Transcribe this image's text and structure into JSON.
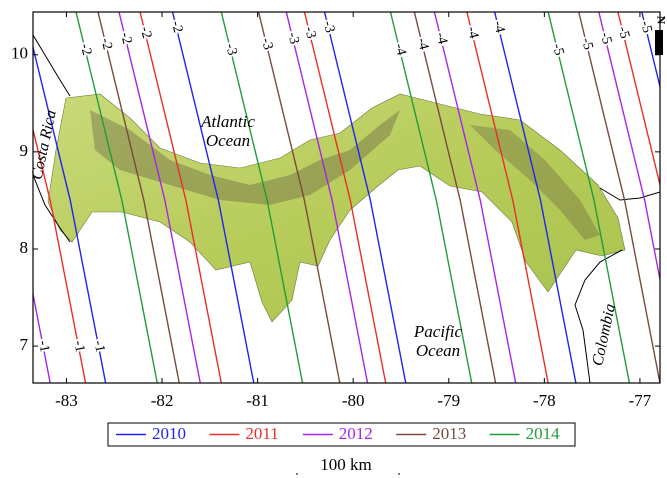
{
  "chart_data": {
    "type": "isolines",
    "xlim": [
      -83.35,
      -76.79
    ],
    "ylim": [
      6.62,
      10.44
    ],
    "xticks": [
      -83,
      -82,
      -81,
      -80,
      -79,
      -78,
      -77
    ],
    "yticks": [
      7,
      8,
      9,
      10
    ],
    "annotations": [
      "Costa Rica",
      "Atlantic Ocean",
      "Pacific Ocean",
      "Colombia"
    ],
    "scale_label": "100 km",
    "north_label": "N",
    "series": [
      {
        "name": "2010",
        "color": "#2323f0",
        "contours": [
          {
            "level": -1,
            "x": [
              -83.44,
              -82.96,
              -82.59
            ],
            "y": [
              10.44,
              8.5,
              6.62
            ]
          },
          {
            "level": -2,
            "x": [
              -81.89,
              -81.41,
              -81.04
            ],
            "y": [
              10.44,
              8.5,
              6.62
            ]
          },
          {
            "level": -3,
            "x": [
              -80.3,
              -79.82,
              -79.45
            ],
            "y": [
              10.44,
              8.5,
              6.62
            ]
          },
          {
            "level": -4,
            "x": [
              -78.52,
              -78.04,
              -77.67
            ],
            "y": [
              10.44,
              8.5,
              6.62
            ]
          },
          {
            "level": -5,
            "x": [
              -76.98,
              -76.5,
              -76.13
            ],
            "y": [
              10.44,
              8.5,
              6.62
            ]
          }
        ]
      },
      {
        "name": "2011",
        "color": "#e8302a",
        "contours": [
          {
            "level": -1,
            "x": [
              -83.65,
              -83.17,
              -82.8
            ],
            "y": [
              10.44,
              8.5,
              6.62
            ]
          },
          {
            "level": -2,
            "x": [
              -82.23,
              -81.75,
              -81.38
            ],
            "y": [
              10.44,
              8.5,
              6.62
            ]
          },
          {
            "level": -3,
            "x": [
              -80.51,
              -80.03,
              -79.66
            ],
            "y": [
              10.44,
              8.5,
              6.62
            ]
          },
          {
            "level": -4,
            "x": [
              -78.81,
              -78.33,
              -77.96
            ],
            "y": [
              10.44,
              8.5,
              6.62
            ]
          },
          {
            "level": -5,
            "x": [
              -77.23,
              -76.75,
              -76.38
            ],
            "y": [
              10.44,
              8.5,
              6.62
            ]
          }
        ]
      },
      {
        "name": "2012",
        "color": "#a626e6",
        "contours": [
          {
            "level": -1,
            "x": [
              -84.02,
              -83.54,
              -83.17
            ],
            "y": [
              10.44,
              8.5,
              6.62
            ]
          },
          {
            "level": -2,
            "x": [
              -82.45,
              -81.97,
              -81.6
            ],
            "y": [
              10.44,
              8.5,
              6.62
            ]
          },
          {
            "level": -3,
            "x": [
              -80.7,
              -80.22,
              -79.85
            ],
            "y": [
              10.44,
              8.5,
              6.62
            ]
          },
          {
            "level": -4,
            "x": [
              -79.15,
              -78.67,
              -78.3
            ],
            "y": [
              10.44,
              8.5,
              6.62
            ]
          },
          {
            "level": -5,
            "x": [
              -77.43,
              -76.95,
              -76.58
            ],
            "y": [
              10.44,
              8.5,
              6.62
            ]
          }
        ]
      },
      {
        "name": "2013",
        "color": "#7b4a3c",
        "contours": [
          {
            "level": -2,
            "x": [
              -82.67,
              -82.19,
              -81.82
            ],
            "y": [
              10.44,
              8.5,
              6.62
            ]
          },
          {
            "level": -3,
            "x": [
              -80.99,
              -80.51,
              -80.14
            ],
            "y": [
              10.44,
              8.5,
              6.62
            ]
          },
          {
            "level": -4,
            "x": [
              -79.36,
              -78.88,
              -78.51
            ],
            "y": [
              10.44,
              8.5,
              6.62
            ]
          },
          {
            "level": -5,
            "x": [
              -77.64,
              -77.16,
              -76.79
            ],
            "y": [
              10.44,
              8.5,
              6.62
            ]
          }
        ]
      },
      {
        "name": "2014",
        "color": "#1f9e3a",
        "contours": [
          {
            "level": -2,
            "x": [
              -82.9,
              -82.42,
              -82.05
            ],
            "y": [
              10.44,
              8.5,
              6.62
            ]
          },
          {
            "level": -3,
            "x": [
              -81.38,
              -80.9,
              -80.53
            ],
            "y": [
              10.44,
              8.5,
              6.62
            ]
          },
          {
            "level": -4,
            "x": [
              -79.61,
              -79.13,
              -78.76
            ],
            "y": [
              10.44,
              8.5,
              6.62
            ]
          },
          {
            "level": -5,
            "x": [
              -77.96,
              -77.48,
              -77.11
            ],
            "y": [
              10.44,
              8.5,
              6.62
            ]
          }
        ]
      }
    ]
  }
}
